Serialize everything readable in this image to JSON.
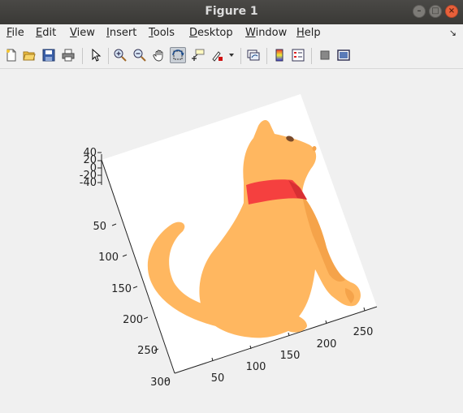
{
  "window": {
    "title": "Figure 1"
  },
  "menu": {
    "items": [
      {
        "key": "F",
        "rest": "ile"
      },
      {
        "key": "E",
        "rest": "dit"
      },
      {
        "key": "V",
        "rest": "iew"
      },
      {
        "key": "I",
        "rest": "nsert"
      },
      {
        "key": "T",
        "rest": "ools"
      },
      {
        "key": "D",
        "rest": "esktop"
      },
      {
        "key": "W",
        "rest": "indow"
      },
      {
        "key": "H",
        "rest": "elp"
      }
    ]
  },
  "toolbar": {
    "icons": [
      "new-figure-icon",
      "open-file-icon",
      "save-icon",
      "print-icon",
      "pointer-icon",
      "zoom-in-icon",
      "zoom-out-icon",
      "pan-icon",
      "rotate-3d-icon",
      "data-cursor-icon",
      "brush-icon",
      "dropdown-arrow-icon",
      "link-plot-icon",
      "colorbar-icon",
      "legend-icon",
      "hide-plot-tools-icon",
      "show-plot-tools-icon"
    ]
  },
  "axes": {
    "z_ticks": [
      "40",
      "20",
      "0",
      "-20",
      "-40"
    ],
    "y_ticks": [
      "50",
      "100",
      "150",
      "200",
      "250",
      "300"
    ],
    "x_ticks": [
      "50",
      "100",
      "150",
      "200",
      "250"
    ]
  },
  "colors": {
    "cat_body": "#ffb760",
    "cat_shadow": "#f5a34a",
    "collar": "#f5403f",
    "collar_dark": "#d82f33",
    "eye": "#7a4a2a",
    "accent_active": "#c9cfd6"
  }
}
